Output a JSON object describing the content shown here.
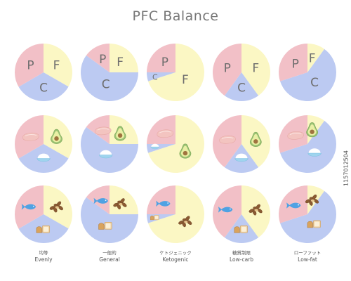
{
  "title": "PFC Balance",
  "credit": "1157012504",
  "colors": {
    "P": "#f2c0c7",
    "F": "#fbf7c4",
    "C": "#bccaf2",
    "letters": "#6e6e6e"
  },
  "icons": {
    "P_row2": "meat-icon",
    "F_row2": "avocado-icon",
    "C_row2": "rice-bowl-icon",
    "P_row3": "fish-icon",
    "F_row3": "nuts-icon",
    "C_row3": "bread-icon"
  },
  "row_symbols": {
    "P": "P",
    "F": "F",
    "C": "C"
  },
  "diets": [
    {
      "jp": "均等",
      "en": "Evenly"
    },
    {
      "jp": "一般的",
      "en": "General"
    },
    {
      "jp": "ケトジェニック",
      "en": "Ketogenic"
    },
    {
      "jp": "糖質制限",
      "en": "Low-carb"
    },
    {
      "jp": "ローファット",
      "en": "Low-fat"
    }
  ],
  "chart_data": [
    {
      "type": "pie",
      "diet": "Evenly",
      "slices": [
        {
          "name": "F",
          "value": 33.3
        },
        {
          "name": "C",
          "value": 33.3
        },
        {
          "name": "P",
          "value": 33.4
        }
      ]
    },
    {
      "type": "pie",
      "diet": "General",
      "slices": [
        {
          "name": "F",
          "value": 25
        },
        {
          "name": "C",
          "value": 60
        },
        {
          "name": "P",
          "value": 15
        }
      ]
    },
    {
      "type": "pie",
      "diet": "Ketogenic",
      "slices": [
        {
          "name": "F",
          "value": 70
        },
        {
          "name": "C",
          "value": 5
        },
        {
          "name": "P",
          "value": 25
        }
      ]
    },
    {
      "type": "pie",
      "diet": "Low-carb",
      "slices": [
        {
          "name": "F",
          "value": 40
        },
        {
          "name": "C",
          "value": 20
        },
        {
          "name": "P",
          "value": 40
        }
      ]
    },
    {
      "type": "pie",
      "diet": "Low-fat",
      "slices": [
        {
          "name": "F",
          "value": 10
        },
        {
          "name": "C",
          "value": 60
        },
        {
          "name": "P",
          "value": 30
        }
      ]
    }
  ]
}
